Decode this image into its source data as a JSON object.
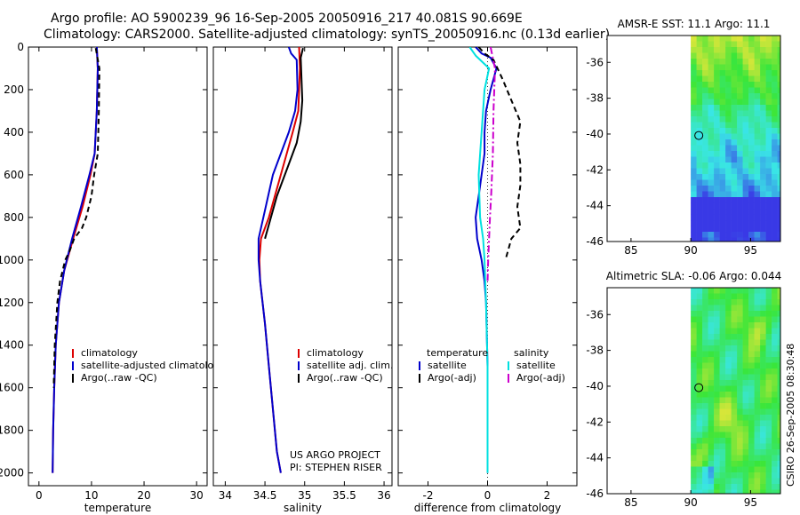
{
  "header": {
    "title_line1": "Argo profile: AO 5900239_96 16-Sep-2005 20050916_217 40.081S 90.669E",
    "title_line2": "Climatology: CARS2000. Satellite-adjusted climatology: synTS_20050916.nc (0.13d earlier)"
  },
  "colors": {
    "climatology": "#dd0000",
    "satellite": "#0000cc",
    "argo": "#000000",
    "salinity_satellite": "#00e0e0",
    "salinity_argo": "#cc00cc"
  },
  "notes": {
    "project": "US ARGO PROJECT",
    "pi": "PI: STEPHEN RISER",
    "stamp": "CSIRO 26-Sep-2005 08:30:48"
  },
  "chart_data": [
    {
      "id": "temp",
      "type": "line",
      "xlabel": "temperature",
      "ylabel": "",
      "xlim": [
        -2,
        32
      ],
      "ylim": [
        0,
        2060
      ],
      "y_reversed": true,
      "xticks": [
        0,
        10,
        20,
        30
      ],
      "xtick_labels": [
        "0",
        "10",
        "20",
        "30"
      ],
      "yticks": [
        0,
        200,
        400,
        600,
        800,
        1000,
        1200,
        1400,
        1600,
        1800,
        2000
      ],
      "ytick_labels": [
        "0",
        "200",
        "400",
        "600",
        "800",
        "1000",
        "1200",
        "1400",
        "1600",
        "1800",
        "2000"
      ],
      "legend": [
        {
          "label": "climatology",
          "color_key": "climatology"
        },
        {
          "label": "satellite-adjusted climatology",
          "color_key": "satellite"
        },
        {
          "label": "Argo(..raw -QC)",
          "color_key": "argo"
        }
      ],
      "series": [
        {
          "name": "climatology",
          "color_key": "climatology",
          "dash": "",
          "width": 2,
          "x": [
            11.0,
            11.2,
            11.0,
            10.6,
            9.8,
            8.3,
            6.5,
            4.8,
            3.8,
            3.2,
            2.9,
            2.7,
            2.6
          ],
          "y": [
            0,
            100,
            300,
            500,
            600,
            750,
            900,
            1050,
            1200,
            1400,
            1600,
            1800,
            2000
          ]
        },
        {
          "name": "satellite-adjusted climatology",
          "color_key": "satellite",
          "dash": "",
          "width": 2,
          "x": [
            11.0,
            11.2,
            11.0,
            10.6,
            9.6,
            8.0,
            6.3,
            4.8,
            3.8,
            3.2,
            2.9,
            2.7,
            2.6
          ],
          "y": [
            0,
            100,
            300,
            500,
            600,
            750,
            900,
            1050,
            1200,
            1400,
            1600,
            1800,
            2000
          ]
        },
        {
          "name": "Argo(..raw -QC)",
          "color_key": "argo",
          "dash": "6,4",
          "width": 2,
          "x": [
            10.8,
            11.5,
            11.4,
            11.2,
            10.5,
            10.0,
            9.0,
            8.2,
            6.7,
            5.8,
            5.0,
            4.0,
            3.5,
            3.0,
            2.8
          ],
          "y": [
            5,
            100,
            300,
            500,
            600,
            700,
            800,
            850,
            900,
            960,
            1000,
            1100,
            1200,
            1400,
            1600
          ]
        }
      ]
    },
    {
      "id": "sal",
      "type": "line",
      "xlabel": "salinity",
      "ylabel": "",
      "xlim": [
        33.85,
        36.1
      ],
      "ylim": [
        0,
        2060
      ],
      "y_reversed": true,
      "xticks": [
        34,
        34.5,
        35,
        35.5,
        36
      ],
      "xtick_labels": [
        "34",
        "34.5",
        "35",
        "35.5",
        "36"
      ],
      "yticks": [
        0,
        200,
        400,
        600,
        800,
        1000,
        1200,
        1400,
        1600,
        1800,
        2000
      ],
      "ytick_labels": [],
      "legend": [
        {
          "label": "climatology",
          "color_key": "climatology"
        },
        {
          "label": "satellite adj. clim.",
          "color_key": "satellite"
        },
        {
          "label": "Argo(..raw -QC)",
          "color_key": "argo"
        }
      ],
      "series": [
        {
          "name": "climatology",
          "color_key": "climatology",
          "dash": "",
          "width": 2,
          "x": [
            34.93,
            34.94,
            34.92,
            34.85,
            34.7,
            34.55,
            34.45,
            34.43,
            34.44,
            34.5,
            34.55,
            34.6,
            34.65,
            34.7
          ],
          "y": [
            0,
            100,
            300,
            400,
            600,
            800,
            900,
            1000,
            1100,
            1300,
            1500,
            1700,
            1900,
            2000
          ]
        },
        {
          "name": "satellite adj. clim.",
          "color_key": "satellite",
          "dash": "",
          "width": 2,
          "x": [
            34.8,
            34.83,
            34.9,
            34.91,
            34.88,
            34.8,
            34.6,
            34.48,
            34.42,
            34.42,
            34.44,
            34.5,
            34.55,
            34.6,
            34.65,
            34.7
          ],
          "y": [
            0,
            30,
            60,
            200,
            300,
            400,
            600,
            800,
            900,
            1000,
            1100,
            1300,
            1500,
            1700,
            1900,
            2000
          ]
        },
        {
          "name": "Argo(..raw -QC)",
          "color_key": "argo",
          "dash": "",
          "width": 2,
          "x": [
            34.98,
            34.95,
            34.96,
            34.97,
            34.95,
            34.9,
            34.8,
            34.65,
            34.5
          ],
          "y": [
            5,
            50,
            150,
            250,
            350,
            450,
            550,
            700,
            900
          ]
        }
      ]
    },
    {
      "id": "diff",
      "type": "line",
      "xlabel": "difference from climatology",
      "ylabel": "",
      "xlim": [
        -3.0,
        3.0
      ],
      "ylim": [
        0,
        2060
      ],
      "y_reversed": true,
      "xticks": [
        -2,
        0,
        2
      ],
      "xtick_labels": [
        "-2",
        "0",
        "2"
      ],
      "yticks": [
        0,
        200,
        400,
        600,
        800,
        1000,
        1200,
        1400,
        1600,
        1800,
        2000
      ],
      "ytick_labels": [],
      "zero_line": true,
      "legend_headers": [
        "temperature",
        "salinity"
      ],
      "legend": [
        {
          "label": "satellite",
          "color_key": "satellite",
          "group": 0
        },
        {
          "label": "Argo(-adj)",
          "color_key": "argo",
          "group": 0
        },
        {
          "label": "satellite",
          "color_key": "salinity_satellite",
          "group": 1
        },
        {
          "label": "Argo(-adj)",
          "color_key": "salinity_argo",
          "group": 1
        }
      ],
      "series": [
        {
          "name": "temperature satellite",
          "color_key": "satellite",
          "dash": "",
          "width": 2,
          "x": [
            -0.4,
            -0.2,
            0.1,
            0.3,
            0.1,
            -0.05,
            -0.1,
            -0.1,
            -0.2,
            -0.3,
            -0.4,
            -0.35,
            -0.2,
            -0.1,
            -0.05,
            0.0,
            0.0,
            0.0
          ],
          "y": [
            0,
            30,
            50,
            100,
            200,
            300,
            400,
            500,
            600,
            700,
            800,
            900,
            1000,
            1100,
            1200,
            1500,
            1800,
            2000
          ]
        },
        {
          "name": "temperature Argo(-adj)",
          "color_key": "argo",
          "dash": "6,4",
          "width": 2,
          "x": [
            -0.3,
            -0.1,
            0.2,
            0.5,
            0.8,
            1.1,
            1.0,
            1.1,
            1.1,
            1.0,
            1.1,
            0.8,
            0.6
          ],
          "y": [
            0,
            30,
            60,
            150,
            250,
            350,
            450,
            550,
            650,
            750,
            850,
            900,
            1000
          ]
        },
        {
          "name": "salinity satellite",
          "color_key": "salinity_satellite",
          "dash": "",
          "width": 2,
          "x": [
            -0.6,
            -0.4,
            0.05,
            -0.1,
            -0.2,
            -0.3,
            -0.25,
            -0.15,
            -0.1,
            -0.05,
            0.0,
            0.0,
            0.0
          ],
          "y": [
            0,
            40,
            100,
            200,
            400,
            600,
            800,
            900,
            1000,
            1200,
            1500,
            1800,
            2000
          ]
        },
        {
          "name": "salinity Argo(-adj)",
          "color_key": "salinity_argo",
          "dash": "8,3,2,3",
          "width": 2,
          "x": [
            0.1,
            0.25,
            0.2,
            0.18,
            0.15,
            0.12,
            0.08,
            0.05,
            0.02,
            0.0
          ],
          "y": [
            0,
            100,
            300,
            500,
            600,
            700,
            800,
            900,
            1000,
            1100
          ]
        }
      ]
    }
  ],
  "maps": [
    {
      "id": "sst",
      "title": "AMSR-E SST: 11.1 Argo: 11.1",
      "xlim": [
        83,
        97.5
      ],
      "ylim": [
        -46,
        -34.5
      ],
      "xticks": [
        85,
        90,
        95
      ],
      "yticks": [
        -36,
        -38,
        -40,
        -42,
        -44,
        -46
      ],
      "data_lon_min": 90,
      "marker": [
        90.67,
        -40.08
      ],
      "pattern": "sst"
    },
    {
      "id": "sla",
      "title": "Altimetric SLA: -0.06 Argo: 0.044",
      "xlim": [
        83,
        97.5
      ],
      "ylim": [
        -46,
        -34.5
      ],
      "xticks": [
        85,
        90,
        95
      ],
      "yticks": [
        -36,
        -38,
        -40,
        -42,
        -44,
        -46
      ],
      "data_lon_min": 90,
      "marker": [
        90.67,
        -40.08
      ],
      "pattern": "sla"
    }
  ]
}
